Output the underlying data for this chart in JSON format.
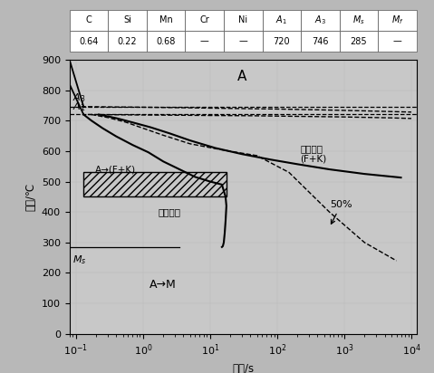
{
  "xlabel": "时间/s",
  "ylabel": "温度/℃",
  "A1": 720,
  "A3": 746,
  "Ms": 285,
  "table_col_headers": [
    "C",
    "Si",
    "Mn",
    "Cr",
    "Ni",
    "$A_1$",
    "$A_3$",
    "$M_s$",
    "$M_f$"
  ],
  "table_values": [
    "0.64",
    "0.22",
    "0.68",
    "—",
    "—",
    "720",
    "746",
    "285",
    "—"
  ],
  "fig_bg": "#b8b8b8",
  "plot_bg": "#c8c8c8",
  "label_A": "A",
  "label_AM": "A→M",
  "label_start": "转变开始",
  "label_end": "转变终了\n(F+K)",
  "label_FK": "A→(F+K)",
  "label_50": "50%"
}
